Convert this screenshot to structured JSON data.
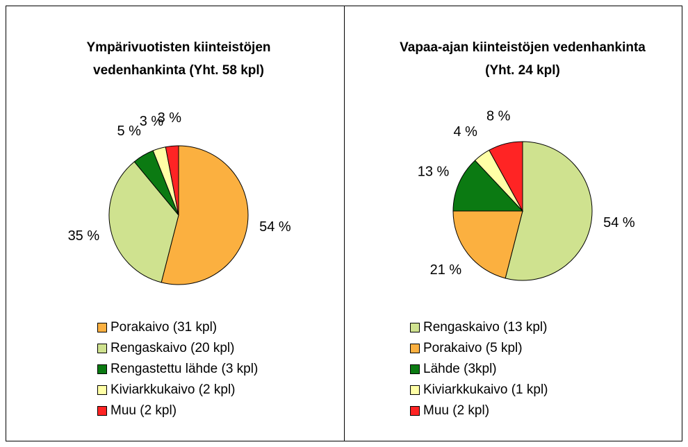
{
  "chart_data": [
    {
      "type": "pie",
      "title": "Ympärivuotisten kiinteistöjen vedenhankinta (Yht. 58 kpl)",
      "categories": [
        "Porakaivo (31 kpl)",
        "Rengaskaivo (20 kpl)",
        "Rengastettu lähde (3 kpl)",
        "Kiviarkkukaivo (2 kpl)",
        "Muu (2 kpl)"
      ],
      "values": [
        54,
        35,
        5,
        3,
        3
      ],
      "value_labels": [
        "54 %",
        "35 %",
        "5 %",
        "3 %",
        "3 %"
      ],
      "colors": [
        "#fbb040",
        "#cfe28f",
        "#0b7a12",
        "#ffffa6",
        "#ff2424"
      ]
    },
    {
      "type": "pie",
      "title": "Vapaa-ajan kiinteistöjen vedenhankinta (Yht. 24 kpl)",
      "categories": [
        "Rengaskaivo (13 kpl)",
        "Porakaivo (5 kpl)",
        "Lähde (3kpl)",
        "Kiviarkkukaivo (1 kpl)",
        "Muu (2 kpl)"
      ],
      "values": [
        54,
        21,
        13,
        4,
        8
      ],
      "value_labels": [
        "54 %",
        "21 %",
        "13 %",
        "4 %",
        "8 %"
      ],
      "colors": [
        "#cfe28f",
        "#fbb040",
        "#0b7a12",
        "#ffffa6",
        "#ff2424"
      ]
    }
  ]
}
